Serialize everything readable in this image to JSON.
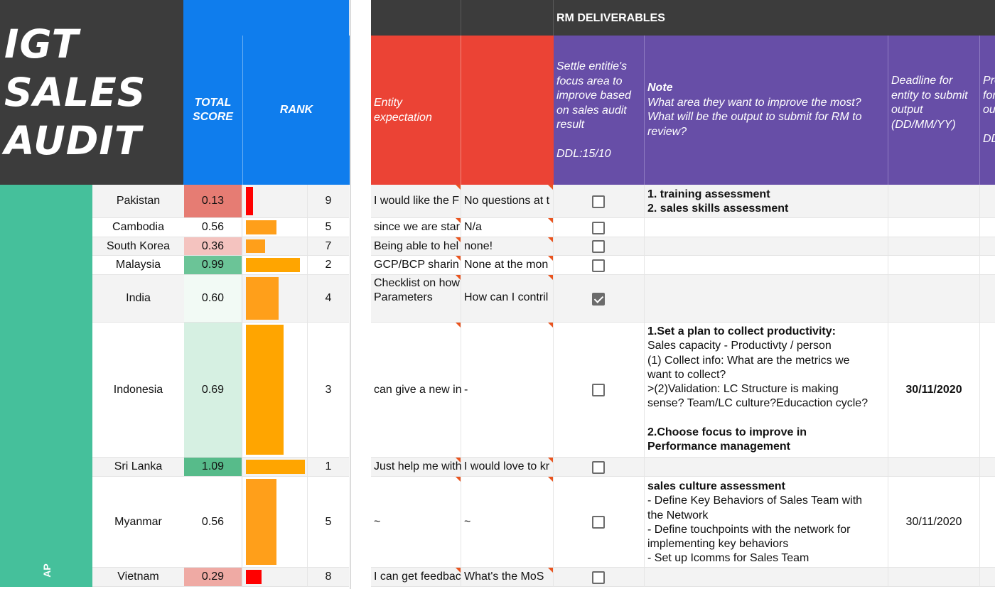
{
  "logo": {
    "lines": [
      "IGT",
      "SALES",
      "AUDIT"
    ]
  },
  "headers": {
    "total_score": [
      "TOTAL",
      "SCORE"
    ],
    "rank": "RANK",
    "rm_deliverables": "RM DELIVERABLES",
    "entity_expectation": [
      "Entity",
      "expectation"
    ],
    "settle": [
      "Settle entitie's",
      "focus area to",
      "improve based",
      "on sales audit",
      "result",
      "",
      "DDL:15/10"
    ],
    "note_title": "Note",
    "note_lines": [
      "What area they want to improve the most?",
      "What will be the output to submit for RM to",
      "review?"
    ],
    "deadline": [
      "Deadline for",
      "entity to submit",
      "output",
      "(DD/MM/YY)"
    ],
    "cut_col": [
      "Pro",
      "for",
      "ou",
      "",
      "DD"
    ]
  },
  "region": "AP",
  "colors": {
    "dark": "#3c3c3c",
    "blue": "#0f7ded",
    "green": "#45c09b",
    "red": "#eb4335",
    "purple": "#674ea7",
    "bar_orange": "#ffa500",
    "bar_red": "#ff0000"
  },
  "rows": [
    {
      "country": "Pakistan",
      "score": "0.13",
      "score_value": 0.13,
      "rank": "9",
      "bar_color": "#ff0000",
      "score_bg": "#e67c73",
      "expectation": "I would like the F",
      "question": "No questions at t",
      "checked": false,
      "note": [
        "<b>1. training assessment</b>",
        "<b>2. sales skills assessment</b>"
      ],
      "deadline": ""
    },
    {
      "country": "Cambodia",
      "score": "0.56",
      "score_value": 0.56,
      "rank": "5",
      "bar_color": "#ff9f1a",
      "score_bg": "#ffffff",
      "expectation": "since we are star",
      "question": "N/a",
      "checked": false,
      "note": [],
      "deadline": ""
    },
    {
      "country": "South Korea",
      "score": "0.36",
      "score_value": 0.36,
      "rank": "7",
      "bar_color": "#ff9f1a",
      "score_bg": "#f4c3bf",
      "expectation": "Being able to hel",
      "question": "none!",
      "checked": false,
      "note": [],
      "deadline": ""
    },
    {
      "country": "Malaysia",
      "score": "0.99",
      "score_value": 0.99,
      "rank": "2",
      "bar_color": "#ffa500",
      "score_bg": "#6bc497",
      "expectation": "GCP/BCP sharin",
      "question": "None at the mon",
      "checked": false,
      "note": [],
      "deadline": ""
    },
    {
      "country": "India",
      "score": "0.60",
      "score_value": 0.6,
      "rank": "4",
      "bar_color": "#ff9f1a",
      "score_bg": "#f2faf5",
      "expectation": "Checklist on how|Parameters",
      "question": "How can I contril",
      "checked": true,
      "note": [],
      "deadline": ""
    },
    {
      "country": "Indonesia",
      "score": "0.69",
      "score_value": 0.69,
      "rank": "3",
      "bar_color": "#ffa500",
      "score_bg": "#d6f0e2",
      "expectation": "can give a new in",
      "question": "-",
      "checked": false,
      "note": [
        "<b>1.Set a plan to collect productivity:</b>",
        "Sales capacity - Productivty / person",
        "(1) Collect info: What are the metrics we",
        "want to collect?",
        ">(2)Validation: LC Structure is making",
        "sense? Team/LC culture?Educaction cycle?",
        "",
        "<b>2.Choose focus to improve in</b>",
        "<b>Performance management</b>"
      ],
      "deadline": "30/11/2020",
      "deadline_bold": true
    },
    {
      "country": "Sri Lanka",
      "score": "1.09",
      "score_value": 1.09,
      "rank": "1",
      "bar_color": "#ffa500",
      "score_bg": "#57bb8a",
      "expectation": "Just help me with",
      "question": "I would love to kr",
      "checked": false,
      "note": [],
      "deadline": ""
    },
    {
      "country": "Myanmar",
      "score": "0.56",
      "score_value": 0.56,
      "rank": "5",
      "bar_color": "#ff9f1a",
      "score_bg": "#ffffff",
      "expectation": "~",
      "question": "~",
      "checked": false,
      "note": [
        "<b>sales culture assessment</b>",
        "- Define Key Behaviors of Sales Team with",
        "the Network",
        "- Define touchpoints with the network for",
        "implementing key behaviors",
        "- Set up Icomms for Sales Team"
      ],
      "deadline": "30/11/2020",
      "deadline_bold": false
    },
    {
      "country": "Vietnam",
      "score": "0.29",
      "score_value": 0.29,
      "rank": "8",
      "bar_color": "#ff0000",
      "score_bg": "#efaaa4",
      "expectation": "I can get feedbac",
      "question": "What's the MoS",
      "checked": false,
      "note": [],
      "deadline": ""
    }
  ]
}
